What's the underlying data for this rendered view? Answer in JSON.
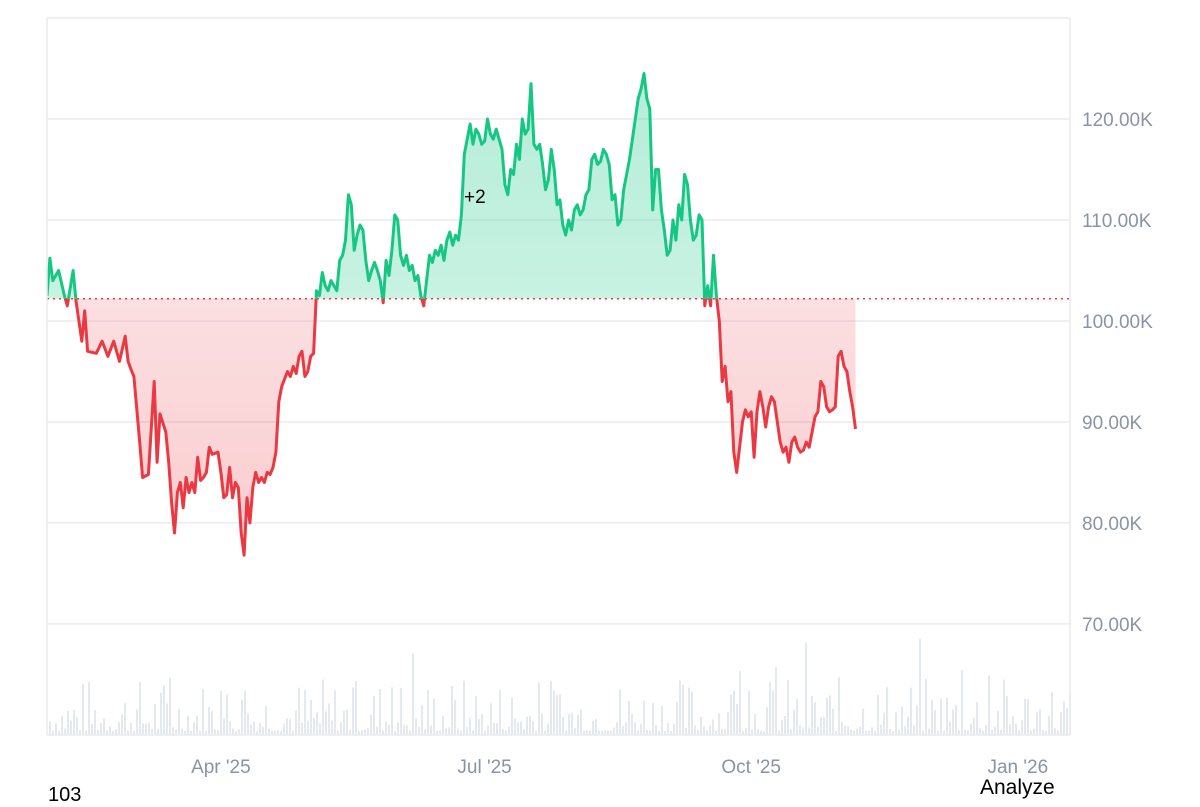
{
  "colors": {
    "up": "#16c784",
    "down": "#ea3943",
    "up_fill": "#16c784",
    "down_fill": "#ea3943",
    "grid": "#e9ecf1",
    "baseline": "#ea3943",
    "volume": "#d9e2ea",
    "axis_text": "#8a93a6"
  },
  "annotation": "+2",
  "corner_left": "103",
  "analyze_label": "Analyze",
  "chart_data": {
    "type": "area",
    "baseline": 102.2,
    "ylim": [
      59,
      130
    ],
    "y_ticks": [
      {
        "value": 120,
        "label": "120.00K"
      },
      {
        "value": 110,
        "label": "110.00K"
      },
      {
        "value": 100,
        "label": "100.00K"
      },
      {
        "value": 90,
        "label": "90.00K"
      },
      {
        "value": 80,
        "label": "80.00K"
      },
      {
        "value": 70,
        "label": "70.00K"
      }
    ],
    "x_ticks": [
      {
        "day": 48,
        "label": "Apr '25"
      },
      {
        "day": 139,
        "label": "Jul '25"
      },
      {
        "day": 231,
        "label": "Oct '25"
      },
      {
        "day": 323,
        "label": "Jan '26"
      }
    ],
    "x_range": [
      -12,
      341
    ],
    "grid": true,
    "price_unit": "K",
    "series": [
      {
        "points": [
          [
            -12,
            102.5
          ],
          [
            -11,
            106.2
          ],
          [
            -10,
            104.0
          ],
          [
            -8,
            105.0
          ],
          [
            -6,
            102.5
          ],
          [
            -5,
            101.5
          ],
          [
            -3,
            105.0
          ],
          [
            -2,
            102.0
          ],
          [
            0,
            98.0
          ],
          [
            1,
            101.0
          ],
          [
            2,
            97.0
          ],
          [
            5,
            96.8
          ],
          [
            7,
            98.0
          ],
          [
            9,
            96.5
          ],
          [
            11,
            98.0
          ],
          [
            13,
            96.0
          ],
          [
            15,
            98.5
          ],
          [
            16,
            96.0
          ],
          [
            17,
            95.2
          ],
          [
            18,
            94.5
          ],
          [
            20,
            88.0
          ],
          [
            21,
            84.5
          ],
          [
            23,
            84.8
          ],
          [
            25,
            94.0
          ],
          [
            26,
            86.0
          ],
          [
            27,
            90.8
          ],
          [
            29,
            89.0
          ],
          [
            30,
            86.0
          ],
          [
            31,
            82.0
          ],
          [
            32,
            79.0
          ],
          [
            33,
            83.0
          ],
          [
            34,
            84.0
          ],
          [
            35,
            81.5
          ],
          [
            36,
            84.5
          ],
          [
            37,
            83.0
          ],
          [
            38,
            84.0
          ],
          [
            39,
            83.0
          ],
          [
            40,
            86.5
          ],
          [
            41,
            84.2
          ],
          [
            42,
            84.5
          ],
          [
            43,
            85.0
          ],
          [
            44,
            87.5
          ],
          [
            45,
            86.8
          ],
          [
            47,
            87.0
          ],
          [
            48,
            85.0
          ],
          [
            49,
            82.5
          ],
          [
            50,
            82.8
          ],
          [
            51,
            85.5
          ],
          [
            52,
            82.5
          ],
          [
            53,
            84.0
          ],
          [
            54,
            83.5
          ],
          [
            55,
            79.0
          ],
          [
            56,
            76.8
          ],
          [
            57,
            82.5
          ],
          [
            58,
            80.0
          ],
          [
            59,
            83.5
          ],
          [
            60,
            85.0
          ],
          [
            61,
            84.0
          ],
          [
            62,
            84.5
          ],
          [
            63,
            84.0
          ],
          [
            64,
            85.0
          ],
          [
            65,
            84.8
          ],
          [
            66,
            85.5
          ],
          [
            67,
            87.0
          ],
          [
            68,
            92.0
          ],
          [
            69,
            93.5
          ],
          [
            71,
            95.0
          ],
          [
            72,
            94.5
          ],
          [
            73,
            95.5
          ],
          [
            74,
            94.8
          ],
          [
            75,
            96.5
          ],
          [
            76,
            97.0
          ],
          [
            77,
            94.5
          ],
          [
            78,
            95.0
          ],
          [
            79,
            96.5
          ],
          [
            80,
            96.8
          ],
          [
            81,
            103.0
          ],
          [
            82,
            102.5
          ],
          [
            83,
            104.8
          ],
          [
            84,
            103.5
          ],
          [
            85,
            103.0
          ],
          [
            86,
            104.0
          ],
          [
            87,
            103.5
          ],
          [
            88,
            103.0
          ],
          [
            89,
            106.0
          ],
          [
            90,
            106.5
          ],
          [
            91,
            108.0
          ],
          [
            92,
            112.5
          ],
          [
            93,
            111.5
          ],
          [
            94,
            107.0
          ],
          [
            95,
            108.5
          ],
          [
            96,
            109.5
          ],
          [
            97,
            109.0
          ],
          [
            98,
            106.0
          ],
          [
            99,
            104.0
          ],
          [
            100,
            105.0
          ],
          [
            101,
            105.8
          ],
          [
            102,
            105.0
          ],
          [
            103,
            104.0
          ],
          [
            104,
            101.8
          ],
          [
            105,
            106.0
          ],
          [
            106,
            104.5
          ],
          [
            107,
            107.0
          ],
          [
            108,
            110.5
          ],
          [
            109,
            110.0
          ],
          [
            110,
            106.5
          ],
          [
            111,
            105.5
          ],
          [
            112,
            106.5
          ],
          [
            113,
            105.0
          ],
          [
            114,
            105.5
          ],
          [
            115,
            104.0
          ],
          [
            116,
            104.5
          ],
          [
            117,
            102.5
          ],
          [
            118,
            101.5
          ],
          [
            119,
            104.0
          ],
          [
            120,
            106.5
          ],
          [
            121,
            105.8
          ],
          [
            122,
            107.0
          ],
          [
            123,
            106.5
          ],
          [
            124,
            107.5
          ],
          [
            125,
            106.0
          ],
          [
            126,
            108.0
          ],
          [
            127,
            108.8
          ],
          [
            128,
            107.5
          ],
          [
            129,
            108.5
          ],
          [
            130,
            108.0
          ],
          [
            131,
            110.5
          ],
          [
            132,
            116.5
          ],
          [
            133,
            118.0
          ],
          [
            134,
            119.5
          ],
          [
            135,
            117.5
          ],
          [
            136,
            119.0
          ],
          [
            137,
            118.5
          ],
          [
            138,
            117.5
          ],
          [
            139,
            117.8
          ],
          [
            140,
            120.0
          ],
          [
            141,
            118.5
          ],
          [
            142,
            118.0
          ],
          [
            143,
            119.0
          ],
          [
            144,
            118.0
          ],
          [
            145,
            117.0
          ],
          [
            146,
            113.5
          ],
          [
            147,
            112.5
          ],
          [
            148,
            115.0
          ],
          [
            149,
            114.5
          ],
          [
            150,
            117.5
          ],
          [
            151,
            116.0
          ],
          [
            152,
            120.0
          ],
          [
            153,
            118.5
          ],
          [
            154,
            119.0
          ],
          [
            155,
            123.5
          ],
          [
            156,
            117.5
          ],
          [
            157,
            117.0
          ],
          [
            158,
            117.5
          ],
          [
            159,
            115.5
          ],
          [
            160,
            113.0
          ],
          [
            161,
            114.0
          ],
          [
            162,
            117.0
          ],
          [
            163,
            115.0
          ],
          [
            164,
            111.5
          ],
          [
            165,
            112.0
          ],
          [
            166,
            109.5
          ],
          [
            167,
            108.5
          ],
          [
            168,
            110.0
          ],
          [
            169,
            109.0
          ],
          [
            170,
            111.0
          ],
          [
            171,
            111.5
          ],
          [
            172,
            110.5
          ],
          [
            173,
            111.0
          ],
          [
            174,
            112.5
          ],
          [
            175,
            113.0
          ],
          [
            176,
            116.0
          ],
          [
            177,
            116.5
          ],
          [
            178,
            115.5
          ],
          [
            179,
            115.8
          ],
          [
            180,
            117.0
          ],
          [
            181,
            116.5
          ],
          [
            182,
            115.5
          ],
          [
            183,
            112.0
          ],
          [
            184,
            112.5
          ],
          [
            185,
            109.5
          ],
          [
            186,
            110.0
          ],
          [
            187,
            113.0
          ],
          [
            188,
            114.5
          ],
          [
            189,
            116.0
          ],
          [
            190,
            118.0
          ],
          [
            191,
            120.0
          ],
          [
            192,
            122.0
          ],
          [
            193,
            123.0
          ],
          [
            194,
            124.5
          ],
          [
            195,
            122.0
          ],
          [
            196,
            121.0
          ],
          [
            197,
            111.0
          ],
          [
            198,
            115.0
          ],
          [
            199,
            115.0
          ],
          [
            200,
            111.0
          ],
          [
            201,
            109.0
          ],
          [
            202,
            106.5
          ],
          [
            203,
            107.0
          ],
          [
            204,
            110.0
          ],
          [
            205,
            108.0
          ],
          [
            206,
            111.5
          ],
          [
            207,
            110.0
          ],
          [
            208,
            114.5
          ],
          [
            209,
            113.5
          ],
          [
            210,
            110.0
          ],
          [
            211,
            108.0
          ],
          [
            212,
            108.5
          ],
          [
            213,
            110.5
          ],
          [
            214,
            110.0
          ],
          [
            215,
            101.5
          ],
          [
            216,
            103.5
          ],
          [
            217,
            101.5
          ],
          [
            218,
            106.5
          ],
          [
            219,
            102.5
          ],
          [
            220,
            100.0
          ],
          [
            221,
            94.0
          ],
          [
            222,
            95.5
          ],
          [
            223,
            92.0
          ],
          [
            224,
            93.0
          ],
          [
            225,
            87.0
          ],
          [
            226,
            85.0
          ],
          [
            227,
            87.5
          ],
          [
            228,
            90.0
          ],
          [
            229,
            91.2
          ],
          [
            230,
            90.5
          ],
          [
            231,
            91.0
          ],
          [
            232,
            86.5
          ],
          [
            233,
            91.0
          ],
          [
            234,
            93.0
          ],
          [
            235,
            91.5
          ],
          [
            236,
            89.5
          ],
          [
            237,
            91.5
          ],
          [
            238,
            92.5
          ],
          [
            239,
            92.0
          ],
          [
            240,
            90.0
          ],
          [
            241,
            88.0
          ],
          [
            242,
            87.0
          ],
          [
            243,
            87.5
          ],
          [
            244,
            86.0
          ],
          [
            245,
            88.0
          ],
          [
            246,
            88.5
          ],
          [
            247,
            87.5
          ],
          [
            248,
            87.0
          ],
          [
            249,
            87.2
          ],
          [
            250,
            88.0
          ],
          [
            251,
            87.5
          ],
          [
            252,
            89.0
          ],
          [
            253,
            90.5
          ],
          [
            254,
            91.0
          ],
          [
            255,
            94.0
          ],
          [
            256,
            93.5
          ],
          [
            257,
            91.5
          ],
          [
            258,
            91.0
          ],
          [
            259,
            91.2
          ],
          [
            260,
            91.5
          ],
          [
            261,
            96.5
          ],
          [
            262,
            97.0
          ],
          [
            263,
            95.5
          ],
          [
            264,
            95.0
          ],
          [
            265,
            93.0
          ],
          [
            266,
            91.5
          ],
          [
            267,
            89.3
          ]
        ]
      }
    ]
  }
}
